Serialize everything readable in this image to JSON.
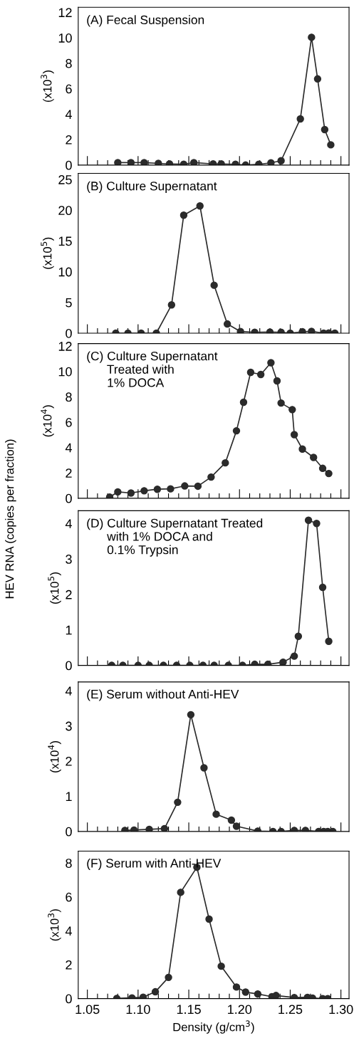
{
  "chart_data": [
    {
      "type": "line",
      "title": "(A) Fecal Suspension",
      "ylabel": "(x10$^{3}$)",
      "annotations": [
        "HEV RNA (copies per fraction)"
      ],
      "marker": "circle",
      "line_style": "solid",
      "tick_labels": "y",
      "xlim": [
        1.041,
        1.308
      ],
      "ylim": [
        0,
        12.4
      ],
      "yticks": [
        0,
        2,
        4,
        6,
        8,
        10,
        12
      ],
      "xticks": [
        {
          "value": 1.05,
          "label": null
        },
        {
          "value": 1.06,
          "label": null
        },
        {
          "value": 1.07,
          "label": null
        },
        {
          "value": 1.08,
          "label": null
        },
        {
          "value": 1.09,
          "label": null
        },
        {
          "value": 1.1,
          "label": null
        },
        {
          "value": 1.11,
          "label": null
        },
        {
          "value": 1.12,
          "label": null
        },
        {
          "value": 1.13,
          "label": null
        },
        {
          "value": 1.14,
          "label": null
        },
        {
          "value": 1.15,
          "label": null
        },
        {
          "value": 1.16,
          "label": null
        },
        {
          "value": 1.17,
          "label": null
        },
        {
          "value": 1.18,
          "label": null
        },
        {
          "value": 1.19,
          "label": null
        },
        {
          "value": 1.2,
          "label": null
        },
        {
          "value": 1.21,
          "label": null
        },
        {
          "value": 1.22,
          "label": null
        },
        {
          "value": 1.23,
          "label": null
        },
        {
          "value": 1.24,
          "label": null
        },
        {
          "value": 1.25,
          "label": null
        },
        {
          "value": 1.26,
          "label": null
        },
        {
          "value": 1.27,
          "label": null
        },
        {
          "value": 1.28,
          "label": null
        },
        {
          "value": 1.29,
          "label": null
        },
        {
          "value": 1.3,
          "label": null
        }
      ],
      "series": [
        {
          "color": "#2b2b2b",
          "x": [
            1.08,
            1.093,
            1.106,
            1.12,
            1.131,
            1.145,
            1.155,
            1.174,
            1.182,
            1.196,
            1.206,
            1.219,
            1.231,
            1.241,
            1.26,
            1.271,
            1.277,
            1.284,
            1.29
          ],
          "values": [
            0.19,
            0.19,
            0.19,
            0.13,
            0.09,
            0.06,
            0.19,
            0.09,
            0.09,
            0.06,
            0,
            0.06,
            0.17,
            0.34,
            3.63,
            10.04,
            6.77,
            2.79,
            1.59
          ]
        }
      ]
    },
    {
      "type": "line",
      "title": "(B) Culture Supernatant",
      "ylabel": "(x10$^{5}$)",
      "marker": "circle",
      "line_style": "solid",
      "tick_labels": "y",
      "xlim": [
        1.041,
        1.308
      ],
      "ylim": [
        0,
        26
      ],
      "yticks": [
        0,
        5,
        10,
        15,
        20,
        25
      ],
      "xticks": [
        {
          "value": 1.05,
          "label": null
        },
        {
          "value": 1.06,
          "label": null
        },
        {
          "value": 1.07,
          "label": null
        },
        {
          "value": 1.08,
          "label": null
        },
        {
          "value": 1.09,
          "label": null
        },
        {
          "value": 1.1,
          "label": null
        },
        {
          "value": 1.11,
          "label": null
        },
        {
          "value": 1.12,
          "label": null
        },
        {
          "value": 1.13,
          "label": null
        },
        {
          "value": 1.14,
          "label": null
        },
        {
          "value": 1.15,
          "label": null
        },
        {
          "value": 1.16,
          "label": null
        },
        {
          "value": 1.17,
          "label": null
        },
        {
          "value": 1.18,
          "label": null
        },
        {
          "value": 1.19,
          "label": null
        },
        {
          "value": 1.2,
          "label": null
        },
        {
          "value": 1.21,
          "label": null
        },
        {
          "value": 1.22,
          "label": null
        },
        {
          "value": 1.23,
          "label": null
        },
        {
          "value": 1.24,
          "label": null
        },
        {
          "value": 1.25,
          "label": null
        },
        {
          "value": 1.26,
          "label": null
        },
        {
          "value": 1.27,
          "label": null
        },
        {
          "value": 1.28,
          "label": null
        },
        {
          "value": 1.29,
          "label": null
        },
        {
          "value": 1.3,
          "label": null
        }
      ],
      "series": [
        {
          "color": "#2b2b2b",
          "x": [
            1.078,
            1.09,
            1.103,
            1.118,
            1.133,
            1.145,
            1.161,
            1.175,
            1.188,
            1.201,
            1.215,
            1.23,
            1.241,
            1.25,
            1.262,
            1.271,
            1.283,
            1.288,
            1.294
          ],
          "values": [
            0,
            0,
            0,
            0,
            4.6,
            19.2,
            20.7,
            7.8,
            1.5,
            0.27,
            0.15,
            0.19,
            0.15,
            0,
            0.23,
            0.3,
            0,
            0.04,
            0
          ]
        }
      ]
    },
    {
      "type": "line",
      "title": "(C) Culture Supernatant\n      Treated with\n      1% DOCA",
      "ylabel": "(x10$^{4}$)",
      "marker": "circle",
      "line_style": "solid",
      "tick_labels": "y",
      "xlim": [
        1.041,
        1.308
      ],
      "ylim": [
        0,
        12.2
      ],
      "yticks": [
        0,
        2,
        4,
        6,
        8,
        10,
        12
      ],
      "xticks": [
        {
          "value": 1.05,
          "label": null
        },
        {
          "value": 1.06,
          "label": null
        },
        {
          "value": 1.07,
          "label": null
        },
        {
          "value": 1.08,
          "label": null
        },
        {
          "value": 1.09,
          "label": null
        },
        {
          "value": 1.1,
          "label": null
        },
        {
          "value": 1.11,
          "label": null
        },
        {
          "value": 1.12,
          "label": null
        },
        {
          "value": 1.13,
          "label": null
        },
        {
          "value": 1.14,
          "label": null
        },
        {
          "value": 1.15,
          "label": null
        },
        {
          "value": 1.16,
          "label": null
        },
        {
          "value": 1.17,
          "label": null
        },
        {
          "value": 1.18,
          "label": null
        },
        {
          "value": 1.19,
          "label": null
        },
        {
          "value": 1.2,
          "label": null
        },
        {
          "value": 1.21,
          "label": null
        },
        {
          "value": 1.22,
          "label": null
        },
        {
          "value": 1.23,
          "label": null
        },
        {
          "value": 1.24,
          "label": null
        },
        {
          "value": 1.25,
          "label": null
        },
        {
          "value": 1.26,
          "label": null
        },
        {
          "value": 1.27,
          "label": null
        },
        {
          "value": 1.28,
          "label": null
        },
        {
          "value": 1.29,
          "label": null
        },
        {
          "value": 1.3,
          "label": null
        }
      ],
      "series": [
        {
          "color": "#2b2b2b",
          "x": [
            1.072,
            1.08,
            1.093,
            1.106,
            1.119,
            1.132,
            1.146,
            1.159,
            1.172,
            1.186,
            1.197,
            1.204,
            1.211,
            1.221,
            1.231,
            1.237,
            1.241,
            1.252,
            1.254,
            1.262,
            1.273,
            1.282,
            1.288
          ],
          "values": [
            0.09,
            0.5,
            0.41,
            0.59,
            0.71,
            0.74,
            0.97,
            0.95,
            1.67,
            2.79,
            5.32,
            7.57,
            9.93,
            9.76,
            10.69,
            9.26,
            7.51,
            6.99,
            5.02,
            3.88,
            3.22,
            2.36,
            1.95
          ]
        }
      ]
    },
    {
      "type": "line",
      "title": "(D) Culture Supernatant Treated\n      with 1% DOCA and\n      0.1% Trypsin",
      "ylabel": "(x10$^{5}$)",
      "marker": "circle",
      "line_style": "solid",
      "tick_labels": "y",
      "xlim": [
        1.041,
        1.308
      ],
      "ylim": [
        0,
        4.36
      ],
      "yticks": [
        0,
        1,
        2,
        3,
        4
      ],
      "xticks": [
        {
          "value": 1.05,
          "label": null
        },
        {
          "value": 1.06,
          "label": null
        },
        {
          "value": 1.07,
          "label": null
        },
        {
          "value": 1.08,
          "label": null
        },
        {
          "value": 1.09,
          "label": null
        },
        {
          "value": 1.1,
          "label": null
        },
        {
          "value": 1.11,
          "label": null
        },
        {
          "value": 1.12,
          "label": null
        },
        {
          "value": 1.13,
          "label": null
        },
        {
          "value": 1.14,
          "label": null
        },
        {
          "value": 1.15,
          "label": null
        },
        {
          "value": 1.16,
          "label": null
        },
        {
          "value": 1.17,
          "label": null
        },
        {
          "value": 1.18,
          "label": null
        },
        {
          "value": 1.19,
          "label": null
        },
        {
          "value": 1.2,
          "label": null
        },
        {
          "value": 1.21,
          "label": null
        },
        {
          "value": 1.22,
          "label": null
        },
        {
          "value": 1.23,
          "label": null
        },
        {
          "value": 1.24,
          "label": null
        },
        {
          "value": 1.25,
          "label": null
        },
        {
          "value": 1.26,
          "label": null
        },
        {
          "value": 1.27,
          "label": null
        },
        {
          "value": 1.28,
          "label": null
        },
        {
          "value": 1.29,
          "label": null
        },
        {
          "value": 1.3,
          "label": null
        }
      ],
      "series": [
        {
          "color": "#2b2b2b",
          "x": [
            1.074,
            1.085,
            1.1,
            1.111,
            1.125,
            1.138,
            1.151,
            1.164,
            1.175,
            1.189,
            1.203,
            1.215,
            1.228,
            1.243,
            1.254,
            1.258,
            1.268,
            1.276,
            1.282,
            1.288
          ],
          "values": [
            0,
            0,
            0,
            0,
            0,
            0,
            0,
            0,
            0,
            0,
            0,
            0.03,
            0.03,
            0.09,
            0.26,
            0.82,
            4.09,
            4.0,
            2.2,
            0.68
          ]
        }
      ]
    },
    {
      "type": "line",
      "title": "(E) Serum without Anti-HEV",
      "ylabel": "(x10$^{4}$)",
      "marker": "circle",
      "line_style": "solid",
      "tick_labels": "y",
      "xlim": [
        1.041,
        1.308
      ],
      "ylim": [
        0,
        4.25
      ],
      "yticks": [
        0,
        1,
        2,
        3,
        4
      ],
      "xticks": [
        {
          "value": 1.05,
          "label": null
        },
        {
          "value": 1.06,
          "label": null
        },
        {
          "value": 1.07,
          "label": null
        },
        {
          "value": 1.08,
          "label": null
        },
        {
          "value": 1.09,
          "label": null
        },
        {
          "value": 1.1,
          "label": null
        },
        {
          "value": 1.11,
          "label": null
        },
        {
          "value": 1.12,
          "label": null
        },
        {
          "value": 1.13,
          "label": null
        },
        {
          "value": 1.14,
          "label": null
        },
        {
          "value": 1.15,
          "label": null
        },
        {
          "value": 1.16,
          "label": null
        },
        {
          "value": 1.17,
          "label": null
        },
        {
          "value": 1.18,
          "label": null
        },
        {
          "value": 1.19,
          "label": null
        },
        {
          "value": 1.2,
          "label": null
        },
        {
          "value": 1.21,
          "label": null
        },
        {
          "value": 1.22,
          "label": null
        },
        {
          "value": 1.23,
          "label": null
        },
        {
          "value": 1.24,
          "label": null
        },
        {
          "value": 1.25,
          "label": null
        },
        {
          "value": 1.26,
          "label": null
        },
        {
          "value": 1.27,
          "label": null
        },
        {
          "value": 1.28,
          "label": null
        },
        {
          "value": 1.29,
          "label": null
        },
        {
          "value": 1.3,
          "label": null
        }
      ],
      "series": [
        {
          "color": "#2b2b2b",
          "x": [
            1.087,
            1.096,
            1.111,
            1.126,
            1.139,
            1.152,
            1.165,
            1.177,
            1.192,
            1.197,
            1.218,
            1.233,
            1.241,
            1.254,
            1.265,
            1.278,
            1.283,
            1.287,
            1.292
          ],
          "values": [
            0.03,
            0.04,
            0.06,
            0.08,
            0.83,
            3.32,
            1.81,
            0.49,
            0.32,
            0.15,
            0.01,
            0,
            0,
            0.03,
            0.03,
            0,
            0,
            0,
            0
          ]
        }
      ]
    },
    {
      "type": "line",
      "title": "(F) Serum with Anti-HEV",
      "ylabel": "(x10$^{3}$)",
      "xlabel": "Density (g/cm$^{3}$)",
      "marker": "circle",
      "line_style": "solid",
      "xlim": [
        1.041,
        1.308
      ],
      "ylim": [
        0,
        8.7
      ],
      "yticks": [
        0,
        2,
        4,
        6,
        8
      ],
      "xticks": [
        {
          "value": 1.05,
          "label": "1.05"
        },
        {
          "value": 1.06,
          "label": null
        },
        {
          "value": 1.07,
          "label": null
        },
        {
          "value": 1.08,
          "label": null
        },
        {
          "value": 1.09,
          "label": null
        },
        {
          "value": 1.1,
          "label": "1.10"
        },
        {
          "value": 1.11,
          "label": null
        },
        {
          "value": 1.12,
          "label": null
        },
        {
          "value": 1.13,
          "label": null
        },
        {
          "value": 1.14,
          "label": null
        },
        {
          "value": 1.15,
          "label": "1.15"
        },
        {
          "value": 1.16,
          "label": null
        },
        {
          "value": 1.17,
          "label": null
        },
        {
          "value": 1.18,
          "label": null
        },
        {
          "value": 1.19,
          "label": null
        },
        {
          "value": 1.2,
          "label": "1.20"
        },
        {
          "value": 1.21,
          "label": null
        },
        {
          "value": 1.22,
          "label": null
        },
        {
          "value": 1.23,
          "label": null
        },
        {
          "value": 1.24,
          "label": null
        },
        {
          "value": 1.25,
          "label": "1.25"
        },
        {
          "value": 1.26,
          "label": null
        },
        {
          "value": 1.27,
          "label": null
        },
        {
          "value": 1.28,
          "label": null
        },
        {
          "value": 1.29,
          "label": null
        },
        {
          "value": 1.3,
          "label": "1.30"
        }
      ],
      "series": [
        {
          "color": "#2b2b2b",
          "x": [
            1.079,
            1.094,
            1.105,
            1.117,
            1.13,
            1.142,
            1.158,
            1.17,
            1.182,
            1.197,
            1.206,
            1.218,
            1.232,
            1.236,
            1.254,
            1.267,
            1.272,
            1.282,
            1.287
          ],
          "values": [
            0.01,
            0.04,
            0.08,
            0.4,
            1.25,
            6.27,
            7.75,
            4.69,
            1.91,
            0.68,
            0.38,
            0.27,
            0.11,
            0.18,
            0.06,
            0.07,
            0.03,
            0,
            0
          ]
        }
      ]
    }
  ]
}
